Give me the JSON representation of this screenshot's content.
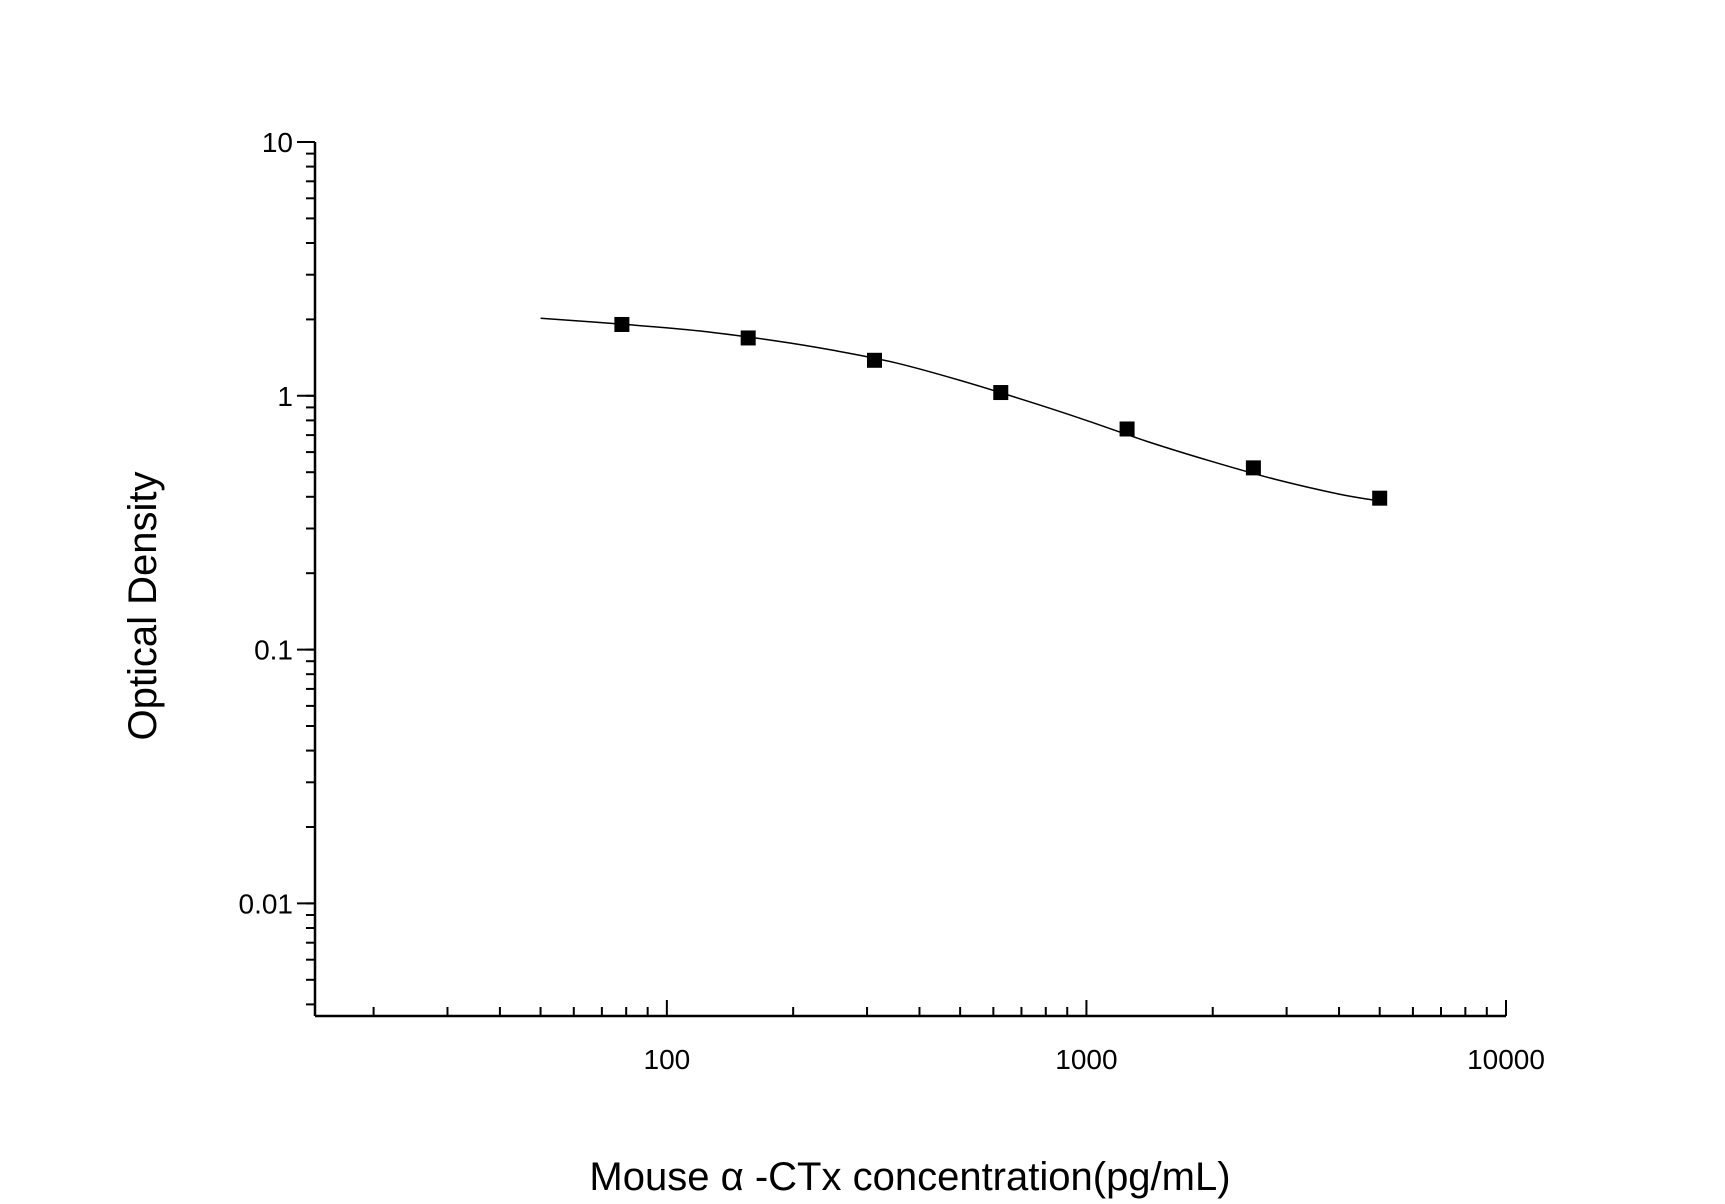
{
  "chart_data": {
    "type": "scatter",
    "x_scale": "log",
    "y_scale": "log",
    "xlim": [
      14.5,
      10000
    ],
    "ylim": [
      0.0036,
      10
    ],
    "xlabel": "Mouse α -CTx concentration(pg/mL)",
    "ylabel": "Optical Density",
    "x_ticks": [
      100,
      1000,
      10000
    ],
    "x_tick_labels": [
      "100",
      "1000",
      "10000"
    ],
    "y_ticks": [
      10,
      1,
      0.1,
      0.01
    ],
    "y_tick_labels": [
      "10",
      "1",
      "0.1",
      "0.01"
    ],
    "grid": false,
    "legend": "none",
    "series": [
      {
        "marker": "square",
        "color": "#000000",
        "x": [
          78.125,
          156.25,
          312.5,
          625,
          1250,
          2500,
          5000
        ],
        "y": [
          1.91,
          1.69,
          1.38,
          1.03,
          0.74,
          0.52,
          0.395
        ]
      }
    ],
    "fit_curve": {
      "x": [
        50,
        80,
        120,
        180,
        250,
        350,
        500,
        700,
        1000,
        1400,
        2000,
        2800,
        4000,
        5000
      ],
      "y": [
        2.02,
        1.91,
        1.8,
        1.65,
        1.51,
        1.35,
        1.15,
        0.97,
        0.8,
        0.66,
        0.55,
        0.47,
        0.41,
        0.385
      ]
    }
  }
}
